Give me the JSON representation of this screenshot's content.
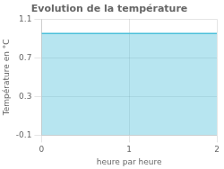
{
  "chart_data": {
    "type": "area",
    "title": "Evolution de la température",
    "xlabel": "heure par heure",
    "ylabel": "Température en °C",
    "x": [
      0,
      2
    ],
    "values": [
      0.95,
      0.95
    ],
    "color": "#4bbfda",
    "xlim": [
      0,
      2
    ],
    "ylim": [
      -0.1,
      1.1
    ],
    "xticks": [
      0,
      1,
      2
    ],
    "yticks": [
      -0.1,
      0.3,
      0.7,
      1.1
    ],
    "grid": true
  }
}
